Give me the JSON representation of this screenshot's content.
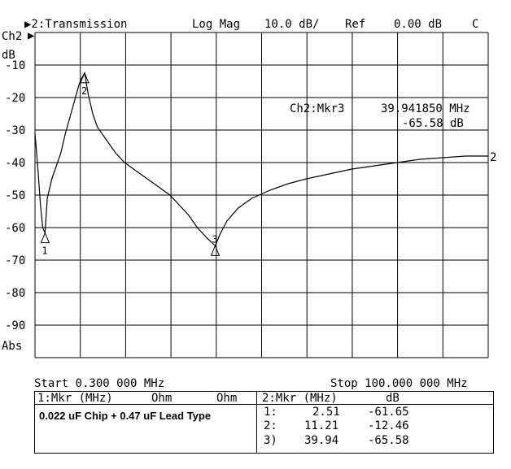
{
  "header": {
    "channel_indicator": "▶2:Transmission",
    "format": "Log Mag",
    "scale": "10.0 dB/",
    "ref_label": "Ref",
    "ref_value": "0.00 dB",
    "flag": "C"
  },
  "left_axis": {
    "channel": "Ch2",
    "unit": "dB",
    "bottom_label": "Abs"
  },
  "marker_readout": {
    "label": "Ch2:Mkr3",
    "freq": "39.941850 MHz",
    "value": "-65.58 dB"
  },
  "trace_end_label": "2",
  "footer": {
    "start": "Start 0.300 000 MHz",
    "stop": "Stop 100.000 000 MHz"
  },
  "table_left": {
    "col1": "1:Mkr (MHz)",
    "col2": "Ohm",
    "col3": "Ohm",
    "title": "0.022 uF Chip + 0.47 uF Lead Type"
  },
  "table_right": {
    "col1": "2:Mkr (MHz)",
    "col2": "dB",
    "rows": [
      {
        "id": "1:",
        "freq": "2.51",
        "db": "-61.65"
      },
      {
        "id": "2:",
        "freq": "11.21",
        "db": "-12.46"
      },
      {
        "id": "3)",
        "freq": "39.94",
        "db": "-65.58"
      }
    ]
  },
  "chart_data": {
    "type": "line",
    "title": "2:Transmission",
    "xlabel": "",
    "ylabel": "dB",
    "xlim": [
      0.3,
      100.0
    ],
    "ylim": [
      -100,
      0
    ],
    "y_ticks": [
      "-10",
      "-20",
      "-30",
      "-40",
      "-50",
      "-60",
      "-70",
      "-80",
      "-90"
    ],
    "grid": true,
    "series": [
      {
        "name": "2",
        "x": [
          0.3,
          1.0,
          1.5,
          2.0,
          2.51,
          3.0,
          4.0,
          5.0,
          6.0,
          7.0,
          8.0,
          9.0,
          10.0,
          10.6,
          11.21,
          12.0,
          13.0,
          14.0,
          16.0,
          18.0,
          20.0,
          22.0,
          24.0,
          26.0,
          28.0,
          30.0,
          32.0,
          34.0,
          36.0,
          38.0,
          39.94,
          41.0,
          42.5,
          45.0,
          48.0,
          52.0,
          56.0,
          60.0,
          65.0,
          70.0,
          75.0,
          80.0,
          85.0,
          90.0,
          95.0,
          100.0
        ],
        "y": [
          -31,
          -43,
          -53,
          -60,
          -61.65,
          -51,
          -45,
          -41,
          -37,
          -31,
          -26,
          -21,
          -16,
          -14,
          -12.46,
          -19,
          -25,
          -29,
          -33,
          -37,
          -40,
          -42,
          -44,
          -46,
          -48,
          -50,
          -53,
          -56,
          -60,
          -63,
          -65.58,
          -62,
          -58,
          -54,
          -51,
          -48.5,
          -46.5,
          -45,
          -43.5,
          -42,
          -41,
          -40,
          -39,
          -38.5,
          -38,
          -38
        ]
      }
    ],
    "markers": [
      {
        "id": "1",
        "x": 2.51,
        "y": -61.65
      },
      {
        "id": "2",
        "x": 11.21,
        "y": -12.46
      },
      {
        "id": "3",
        "x": 39.94,
        "y": -65.58
      }
    ]
  }
}
